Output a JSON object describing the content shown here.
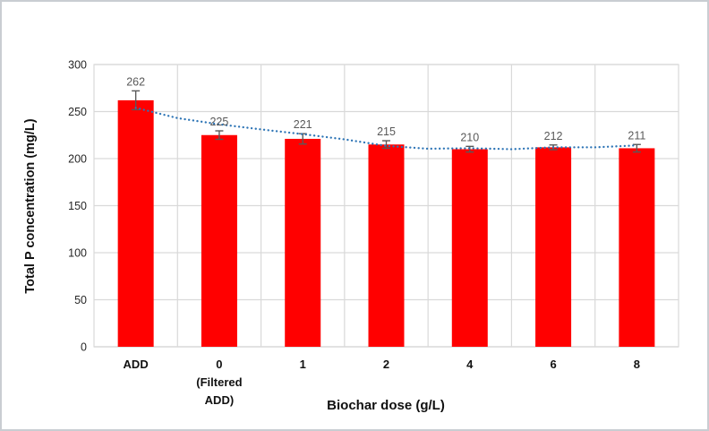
{
  "chart_data": {
    "type": "bar",
    "title": "",
    "xlabel": "Biochar dose (g/L)",
    "ylabel": "Total P concentration (mg/L)",
    "categories": [
      "ADD",
      "0 (Filtered ADD)",
      "1",
      "2",
      "4",
      "6",
      "8"
    ],
    "category_lines": [
      [
        "ADD"
      ],
      [
        "0",
        "(Filtered",
        "ADD)"
      ],
      [
        "1"
      ],
      [
        "2"
      ],
      [
        "4"
      ],
      [
        "6"
      ],
      [
        "8"
      ]
    ],
    "values": [
      262,
      225,
      221,
      215,
      210,
      212,
      211
    ],
    "data_labels": [
      "262",
      "225",
      "221",
      "215",
      "210",
      "212",
      "211"
    ],
    "error_bars": [
      10,
      4.5,
      5.5,
      4,
      3,
      2.5,
      4
    ],
    "yticks": [
      0,
      50,
      100,
      150,
      200,
      250,
      300
    ],
    "ylim": [
      0,
      300
    ],
    "grid": true,
    "legend_position": "none",
    "trendline": {
      "style": "dotted",
      "x_category_units": [
        0,
        0.5,
        1,
        1.5,
        2,
        2.5,
        3,
        3.5,
        4,
        4.5,
        5,
        5.5,
        6
      ],
      "values": [
        254,
        243,
        236.5,
        231,
        226,
        220.5,
        213.5,
        210.5,
        211,
        210,
        212,
        212,
        214
      ]
    },
    "colors": {
      "bar": "#FF0000",
      "trend": "#2E75B6",
      "error_bar": "#595959",
      "data_label": "#595959",
      "gridline": "#D9D9D9",
      "axis_line": "#BFBFBF",
      "tick_label": "#262626"
    }
  }
}
